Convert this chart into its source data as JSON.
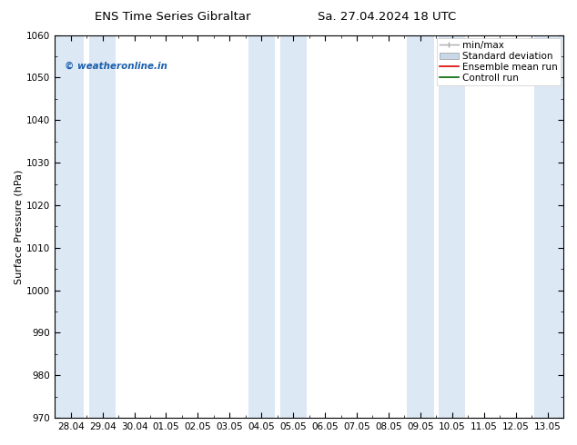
{
  "title_left": "ENS Time Series Gibraltar",
  "title_right": "Sa. 27.04.2024 18 UTC",
  "ylabel": "Surface Pressure (hPa)",
  "ylim": [
    970,
    1060
  ],
  "yticks": [
    970,
    980,
    990,
    1000,
    1010,
    1020,
    1030,
    1040,
    1050,
    1060
  ],
  "x_tick_labels": [
    "28.04",
    "29.04",
    "30.04",
    "01.05",
    "02.05",
    "03.05",
    "04.05",
    "05.05",
    "06.05",
    "07.05",
    "08.05",
    "09.05",
    "10.05",
    "11.05",
    "12.05",
    "13.05"
  ],
  "x_tick_positions": [
    0,
    1,
    2,
    3,
    4,
    5,
    6,
    7,
    8,
    9,
    10,
    11,
    12,
    13,
    14,
    15
  ],
  "xlim": [
    -0.5,
    15.5
  ],
  "shaded_bands": [
    {
      "x_start": -0.5,
      "x_end": 0.42,
      "color": "#dce8f4"
    },
    {
      "x_start": 0.58,
      "x_end": 1.42,
      "color": "#dce8f4"
    },
    {
      "x_start": 5.58,
      "x_end": 6.42,
      "color": "#dce8f4"
    },
    {
      "x_start": 6.58,
      "x_end": 7.42,
      "color": "#dce8f4"
    },
    {
      "x_start": 10.58,
      "x_end": 11.42,
      "color": "#dce8f4"
    },
    {
      "x_start": 11.58,
      "x_end": 12.42,
      "color": "#dce8f4"
    },
    {
      "x_start": 14.58,
      "x_end": 15.5,
      "color": "#dce8f4"
    }
  ],
  "watermark_text": "© weatheronline.in",
  "watermark_color": "#1a5fac",
  "legend_labels": [
    "min/max",
    "Standard deviation",
    "Ensemble mean run",
    "Controll run"
  ],
  "background_color": "#ffffff",
  "font_color": "#000000",
  "title_fontsize": 9.5,
  "axis_label_fontsize": 8,
  "tick_fontsize": 7.5,
  "legend_fontsize": 7.5
}
